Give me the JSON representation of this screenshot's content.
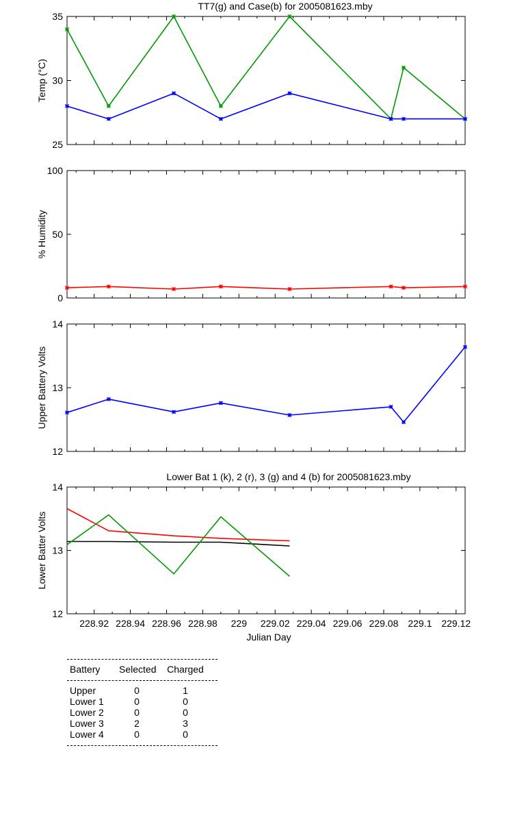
{
  "chart_data": [
    {
      "type": "line",
      "title": "TT7(g) and Case(b) for 2005081623.mby",
      "ylabel": "Temp  (°C)",
      "xlabel": "",
      "xlim": [
        228.905,
        229.125
      ],
      "ylim": [
        25,
        35
      ],
      "yticks": [
        25,
        30,
        35
      ],
      "grid": false,
      "series": [
        {
          "color": "#009900",
          "x": [
            228.905,
            228.928,
            228.964,
            228.99,
            229.028,
            229.084,
            229.091,
            229.125
          ],
          "y": [
            34,
            28,
            35,
            28,
            35,
            27,
            31,
            27
          ]
        },
        {
          "color": "#0000ff",
          "x": [
            228.905,
            228.928,
            228.964,
            228.99,
            229.028,
            229.084,
            229.091,
            229.125
          ],
          "y": [
            28,
            27,
            29,
            27,
            29,
            27,
            27,
            27
          ]
        }
      ]
    },
    {
      "type": "line",
      "title": "",
      "ylabel": "% Humidity",
      "xlabel": "",
      "xlim": [
        228.905,
        229.125
      ],
      "ylim": [
        0,
        100
      ],
      "yticks": [
        0,
        50,
        100
      ],
      "grid": false,
      "series": [
        {
          "color": "#ff0000",
          "x": [
            228.905,
            228.928,
            228.964,
            228.99,
            229.028,
            229.084,
            229.091,
            229.125
          ],
          "y": [
            8,
            9,
            7,
            9,
            7,
            9,
            8,
            9
          ]
        }
      ]
    },
    {
      "type": "line",
      "title": "",
      "ylabel": "Upper Battery Volts",
      "xlabel": "",
      "xlim": [
        228.905,
        229.125
      ],
      "ylim": [
        12,
        14
      ],
      "yticks": [
        12,
        13,
        14
      ],
      "grid": false,
      "series": [
        {
          "color": "#0000ff",
          "x": [
            228.905,
            228.928,
            228.964,
            228.99,
            229.028,
            229.084,
            229.091,
            229.125
          ],
          "y": [
            12.61,
            12.82,
            12.62,
            12.76,
            12.57,
            12.7,
            12.46,
            13.64
          ]
        }
      ]
    },
    {
      "type": "line",
      "title": "Lower Bat 1 (k), 2 (r), 3 (g) and 4 (b) for 2005081623.mby",
      "ylabel": "Lower Batter Volts",
      "xlabel": "Julian Day",
      "xlim": [
        228.905,
        229.125
      ],
      "ylim": [
        12,
        14
      ],
      "yticks": [
        12,
        13,
        14
      ],
      "xticks": [
        228.92,
        228.94,
        228.96,
        228.98,
        229,
        229.02,
        229.04,
        229.06,
        229.08,
        229.1,
        229.12
      ],
      "xticklabels": [
        "228.92",
        "228.94",
        "228.96",
        "228.98",
        "229",
        "229.02",
        "229.04",
        "229.06",
        "229.08",
        "229.1",
        "229.12"
      ],
      "grid": false,
      "series": [
        {
          "color": "#000000",
          "x": [
            228.905,
            228.928,
            228.964,
            228.99,
            229.028
          ],
          "y": [
            13.14,
            13.14,
            13.13,
            13.13,
            13.07
          ]
        },
        {
          "color": "#ff0000",
          "x": [
            228.905,
            228.928,
            228.964,
            228.99,
            229.028
          ],
          "y": [
            13.66,
            13.31,
            13.23,
            13.19,
            13.15
          ]
        },
        {
          "color": "#009900",
          "x": [
            228.905,
            228.928,
            228.964,
            228.99,
            229.028
          ],
          "y": [
            13.09,
            13.56,
            12.63,
            13.53,
            12.59
          ]
        }
      ]
    }
  ],
  "battery_table": {
    "headers": [
      "Battery",
      "Selected",
      "Charged"
    ],
    "rows": [
      [
        "Upper",
        "0",
        "1"
      ],
      [
        "Lower 1",
        "0",
        "0"
      ],
      [
        "Lower 2",
        "0",
        "0"
      ],
      [
        "Lower 3",
        "2",
        "3"
      ],
      [
        "Lower 4",
        "0",
        "0"
      ]
    ]
  }
}
